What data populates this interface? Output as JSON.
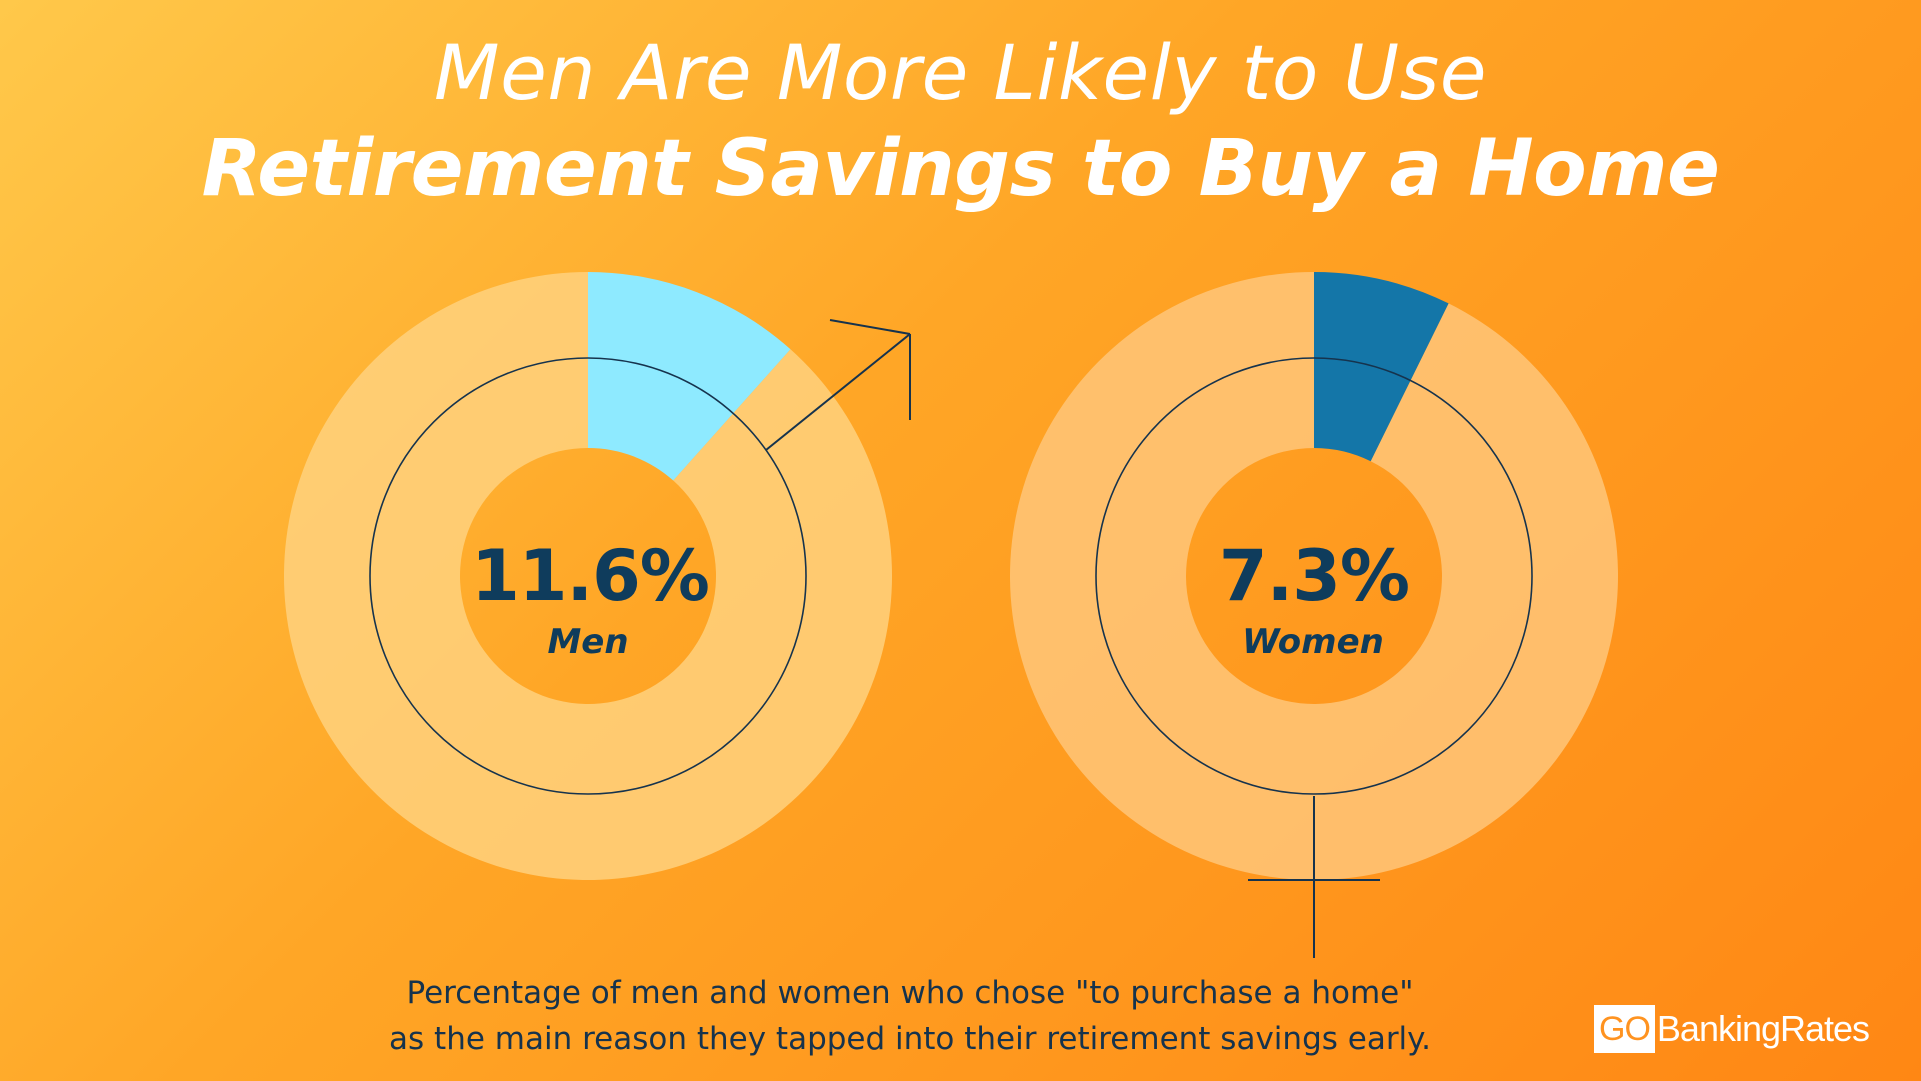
{
  "title": {
    "line1": "Men Are More Likely to Use",
    "line2": "Retirement Savings to Buy a Home"
  },
  "chart_data": [
    {
      "type": "pie",
      "label": "Men",
      "value_text": "11.6%",
      "values": [
        11.6,
        88.4
      ],
      "highlight_color": "#8eeaff",
      "rest_color": "#ffd17e",
      "symbol": "male"
    },
    {
      "type": "pie",
      "label": "Women",
      "value_text": "7.3%",
      "values": [
        7.3,
        92.7
      ],
      "highlight_color": "#1476a8",
      "rest_color": "#ffc679",
      "symbol": "female"
    }
  ],
  "caption": {
    "line1": "Percentage of men and women who chose \"to purchase a home\"",
    "line2": "as the main reason they tapped into their retirement savings early."
  },
  "logo": {
    "boxed": "GO",
    "text": "BankingRates"
  },
  "colors": {
    "text_dark": "#0f3c5c",
    "background_start": "#ffc84a",
    "background_end": "#ff8714"
  }
}
